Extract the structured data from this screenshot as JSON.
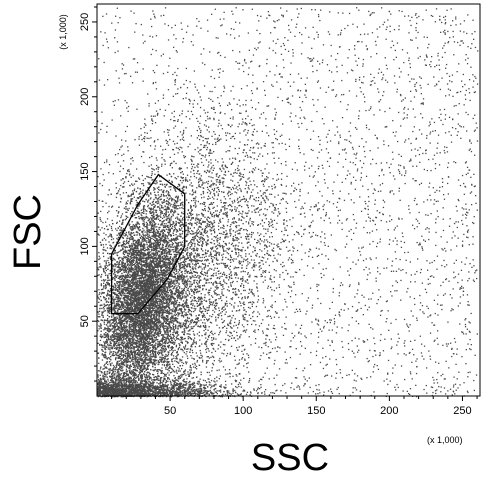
{
  "chart_data": {
    "type": "scatter",
    "title": "",
    "xlabel": "SSC",
    "ylabel": "FSC",
    "x_unit": "(x 1,000)",
    "y_unit": "(x 1,000)",
    "xlim": [
      0,
      262
    ],
    "ylim": [
      0,
      262
    ],
    "x_ticks": [
      50,
      100,
      150,
      200,
      250
    ],
    "y_ticks": [
      50,
      100,
      150,
      200,
      250
    ],
    "x_tick_labels": [
      "50",
      "100",
      "150",
      "200",
      "250"
    ],
    "y_tick_labels": [
      "50",
      "100",
      "150",
      "200",
      "250"
    ],
    "grid": false,
    "legend": "none",
    "point_color": "#4a4a4a",
    "gate_color": "#000000",
    "density_description_points": {
      "core_cluster_center": [
        30,
        70
      ],
      "spread": "dense population in lower-left, sparse diffuse events toward upper-right"
    },
    "gate": {
      "name": "",
      "vertices": [
        [
          10,
          55
        ],
        [
          28,
          55
        ],
        [
          48,
          78
        ],
        [
          60,
          100
        ],
        [
          60,
          135
        ],
        [
          42,
          148
        ],
        [
          28,
          128
        ],
        [
          10,
          95
        ]
      ]
    }
  }
}
